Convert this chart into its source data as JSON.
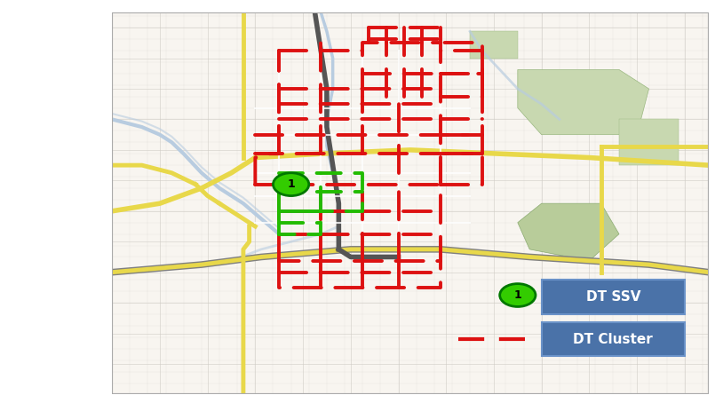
{
  "fig_width": 8.14,
  "fig_height": 4.63,
  "dpi": 100,
  "background_color": "#ffffff",
  "map_bg": "#f0ede8",
  "map_border": "#aaaaaa",
  "red_color": "#dd1111",
  "green_color": "#22bb00",
  "legend_blue": "#4a72a8",
  "legend_text": "#ffffff",
  "marker_fill": "#33cc00",
  "marker_edge": "#007700",
  "marker_label": "1",
  "white_bg": "#f8f5f0",
  "street_light": "#e0dbd4",
  "street_mid": "#c8c2ba",
  "yellow_road": "#e8d84a",
  "gray_road": "#aaaaaa",
  "water_color": "#b8cce0",
  "green_park": "#c8d8b0",
  "green_park2": "#b8cc9a"
}
